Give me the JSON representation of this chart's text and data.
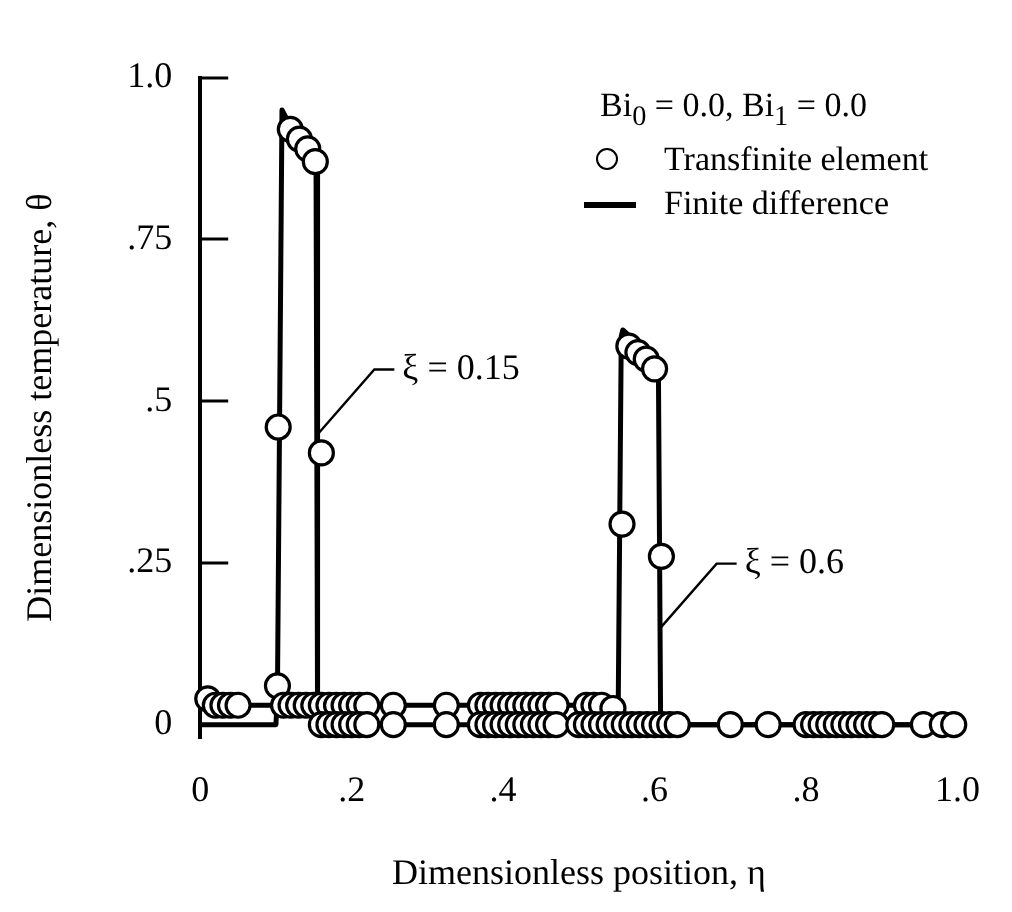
{
  "chart_data": {
    "type": "scatter",
    "xlabel": "Dimensionless position, η",
    "ylabel": "Dimensionless temperature, θ",
    "legend_title": "Bi$_{0}$ = 0.0,  Bi$_{1}$ = 0.0",
    "legend": "top right",
    "xlim": [
      0,
      1.0
    ],
    "ylim": [
      -0.02,
      1.0
    ],
    "xticks": [
      0,
      {
        "value": 0.2,
        "label": ".2"
      },
      {
        "value": 0.4,
        "label": ".4"
      },
      {
        "value": 0.6,
        "label": ".6"
      },
      {
        "value": 0.8,
        "label": ".8"
      },
      {
        "value": 1.0,
        "label": "1.0"
      }
    ],
    "yticks": [
      0,
      {
        "value": 0.25,
        "label": ".25"
      },
      {
        "value": 0.5,
        "label": ".5"
      },
      {
        "value": 0.75,
        "label": ".75"
      },
      {
        "value": 1.0,
        "label": "1.0"
      }
    ],
    "series": [
      {
        "name": "Transfinite element",
        "marker": "circle",
        "color": "#000000",
        "x": [
          0.01,
          0.02,
          0.03,
          0.04,
          0.05,
          0.102,
          0.103,
          0.119,
          0.131,
          0.142,
          0.152,
          0.16,
          0.11,
          0.12,
          0.13,
          0.14,
          0.15,
          0.16,
          0.17,
          0.18,
          0.19,
          0.2,
          0.21,
          0.22,
          0.255,
          0.325,
          0.37,
          0.38,
          0.39,
          0.4,
          0.41,
          0.42,
          0.43,
          0.44,
          0.45,
          0.46,
          0.47,
          0.51,
          0.52,
          0.53,
          0.545,
          0.557,
          0.566,
          0.578,
          0.589,
          0.6,
          0.609,
          0.16,
          0.17,
          0.18,
          0.19,
          0.2,
          0.21,
          0.22,
          0.255,
          0.325,
          0.37,
          0.38,
          0.39,
          0.4,
          0.41,
          0.42,
          0.43,
          0.44,
          0.45,
          0.46,
          0.47,
          0.5,
          0.51,
          0.52,
          0.53,
          0.54,
          0.55,
          0.56,
          0.57,
          0.58,
          0.59,
          0.6,
          0.61,
          0.62,
          0.63,
          0.7,
          0.75,
          0.8,
          0.81,
          0.82,
          0.83,
          0.84,
          0.85,
          0.86,
          0.87,
          0.88,
          0.89,
          0.9,
          0.955,
          0.98,
          0.995
        ],
        "values": [
          0.04,
          0.03,
          0.03,
          0.03,
          0.03,
          0.06,
          0.46,
          0.92,
          0.905,
          0.89,
          0.87,
          0.42,
          0.03,
          0.03,
          0.03,
          0.03,
          0.03,
          0.03,
          0.03,
          0.03,
          0.03,
          0.03,
          0.03,
          0.03,
          0.03,
          0.03,
          0.03,
          0.03,
          0.03,
          0.03,
          0.03,
          0.03,
          0.03,
          0.03,
          0.03,
          0.03,
          0.03,
          0.03,
          0.03,
          0.03,
          0.025,
          0.31,
          0.585,
          0.575,
          0.565,
          0.55,
          0.26,
          0,
          0,
          0,
          0,
          0,
          0,
          0,
          0,
          0,
          0,
          0,
          0,
          0,
          0,
          0,
          0,
          0,
          0,
          0,
          0,
          0,
          0,
          0,
          0,
          0,
          0,
          0,
          0,
          0,
          0,
          0,
          0,
          0,
          0,
          0,
          0,
          0,
          0,
          0,
          0,
          0,
          0,
          0,
          0,
          0,
          0,
          0,
          0,
          0,
          0
        ]
      },
      {
        "name": "Finite difference",
        "type": "line",
        "marker": "none",
        "color": "#000000",
        "x": [
          0,
          0.1,
          0.102,
          0.108,
          0.153,
          0.155,
          1.0
        ],
        "values": [
          0,
          0,
          0.05,
          0.95,
          0.85,
          0,
          0
        ]
      },
      {
        "type": "line",
        "marker": "none",
        "color": "#000000",
        "x": [
          0,
          0.552,
          0.556,
          0.558,
          0.605,
          0.608,
          1.0
        ],
        "values": [
          0.03,
          0.03,
          0.6,
          0.61,
          0.56,
          0,
          0
        ]
      }
    ],
    "annotations": [
      {
        "text": "ξ = 0.15",
        "x": 0.156,
        "y": 0.45
      },
      {
        "text": "ξ = 0.6",
        "x": 0.608,
        "y": 0.15
      }
    ]
  }
}
